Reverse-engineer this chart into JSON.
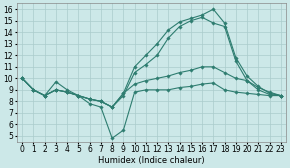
{
  "background_color": "#cce8e8",
  "grid_color": "#aacccc",
  "line_color": "#2e7d70",
  "xlabel": "Humidex (Indice chaleur)",
  "xlim": [
    -0.5,
    23.5
  ],
  "ylim": [
    4.5,
    16.5
  ],
  "xticks": [
    0,
    1,
    2,
    3,
    4,
    5,
    6,
    7,
    8,
    9,
    10,
    11,
    12,
    13,
    14,
    15,
    16,
    17,
    18,
    19,
    20,
    21,
    22,
    23
  ],
  "yticks": [
    5,
    6,
    7,
    8,
    9,
    10,
    11,
    12,
    13,
    14,
    15,
    16
  ],
  "lines": [
    {
      "x": [
        0,
        1,
        2,
        3,
        4,
        5,
        6,
        7,
        8,
        9,
        10,
        11,
        12,
        13,
        14,
        15,
        16,
        17,
        18,
        19,
        20,
        21,
        22,
        23
      ],
      "y": [
        10.0,
        9.0,
        8.5,
        9.7,
        9.0,
        8.5,
        7.8,
        7.5,
        4.8,
        5.5,
        8.8,
        9.0,
        9.0,
        9.0,
        9.2,
        9.3,
        9.5,
        9.6,
        9.0,
        8.8,
        8.7,
        8.6,
        8.5,
        8.5
      ]
    },
    {
      "x": [
        0,
        1,
        2,
        3,
        4,
        5,
        6,
        7,
        8,
        9,
        10,
        11,
        12,
        13,
        14,
        15,
        16,
        17,
        18,
        19,
        20,
        21,
        22,
        23
      ],
      "y": [
        10.0,
        9.0,
        8.5,
        9.0,
        8.8,
        8.5,
        8.2,
        8.0,
        7.5,
        8.7,
        11.0,
        12.0,
        13.0,
        14.2,
        14.9,
        15.2,
        15.5,
        16.0,
        14.8,
        11.8,
        10.2,
        9.3,
        8.7,
        8.5
      ]
    },
    {
      "x": [
        0,
        1,
        2,
        3,
        4,
        5,
        6,
        7,
        8,
        9,
        10,
        11,
        12,
        13,
        14,
        15,
        16,
        17,
        18,
        19,
        20,
        21,
        22,
        23
      ],
      "y": [
        10.0,
        9.0,
        8.5,
        9.0,
        8.8,
        8.5,
        8.2,
        8.0,
        7.5,
        8.5,
        10.5,
        11.2,
        12.0,
        13.5,
        14.5,
        15.0,
        15.3,
        14.8,
        14.5,
        11.5,
        9.8,
        9.0,
        8.6,
        8.5
      ]
    },
    {
      "x": [
        0,
        1,
        2,
        3,
        4,
        5,
        6,
        7,
        8,
        9,
        10,
        11,
        12,
        13,
        14,
        15,
        16,
        17,
        18,
        19,
        20,
        21,
        22,
        23
      ],
      "y": [
        10.0,
        9.0,
        8.5,
        9.0,
        8.8,
        8.5,
        8.2,
        8.0,
        7.5,
        8.7,
        9.5,
        9.8,
        10.0,
        10.2,
        10.5,
        10.7,
        11.0,
        11.0,
        10.5,
        10.0,
        9.8,
        9.2,
        8.8,
        8.5
      ]
    }
  ],
  "marker": "D",
  "marker_size": 1.8,
  "linewidth": 0.8,
  "xlabel_fontsize": 6,
  "tick_fontsize": 5.5
}
